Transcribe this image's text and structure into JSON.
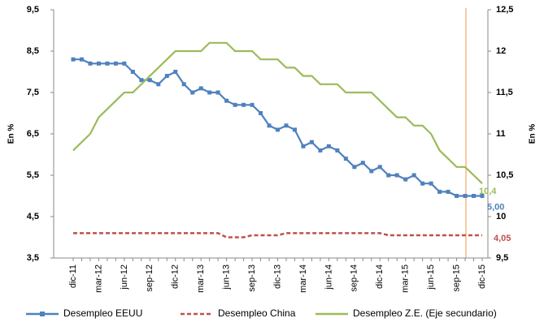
{
  "chart_data": {
    "type": "line",
    "y_label": "En  %",
    "y2_label": "En %",
    "categories": [
      "dic-11",
      null,
      null,
      "mar-12",
      null,
      null,
      "jun-12",
      null,
      null,
      "sep-12",
      null,
      null,
      "dic-12",
      null,
      null,
      "mar-13",
      null,
      null,
      "jun-13",
      null,
      null,
      "sep-13",
      null,
      null,
      "dic-13",
      null,
      null,
      "mar-14",
      null,
      null,
      "jun-14",
      null,
      null,
      "sep-14",
      null,
      null,
      "dic-14",
      null,
      null,
      "mar-15",
      null,
      null,
      "jun-15",
      null,
      null,
      "sep-15",
      null,
      null,
      "dic-15"
    ],
    "series": [
      {
        "name": "Desempleo EEUU",
        "color": "#4f81bd",
        "marker": "square",
        "dash": false,
        "values": [
          8.3,
          8.3,
          8.2,
          8.2,
          8.2,
          8.2,
          8.2,
          8.0,
          7.8,
          7.8,
          7.7,
          7.9,
          8.0,
          7.7,
          7.5,
          7.6,
          7.5,
          7.5,
          7.3,
          7.2,
          7.2,
          7.2,
          7.0,
          6.7,
          6.6,
          6.7,
          6.6,
          6.2,
          6.3,
          6.1,
          6.2,
          6.1,
          5.9,
          5.7,
          5.8,
          5.6,
          5.7,
          5.5,
          5.5,
          5.4,
          5.5,
          5.3,
          5.3,
          5.1,
          5.1,
          5.0,
          5.0,
          5.0,
          5.0
        ],
        "value_labels": [
          null,
          null,
          null,
          null,
          null,
          null,
          null,
          null,
          null,
          null,
          null,
          null,
          null,
          null,
          null,
          null,
          null,
          null,
          null,
          null,
          null,
          null,
          null,
          null,
          null,
          null,
          null,
          null,
          null,
          null,
          null,
          null,
          null,
          null,
          null,
          null,
          null,
          null,
          null,
          null,
          null,
          null,
          null,
          null,
          null,
          null,
          null,
          null,
          "5,00"
        ]
      },
      {
        "name": "Desempleo China",
        "color": "#c0504d",
        "marker": null,
        "dash": true,
        "values": [
          4.1,
          4.1,
          4.1,
          4.1,
          4.1,
          4.1,
          4.1,
          4.1,
          4.1,
          4.1,
          4.1,
          4.1,
          4.1,
          4.1,
          4.1,
          4.1,
          4.1,
          4.1,
          4.0,
          4.0,
          4.0,
          4.05,
          4.05,
          4.05,
          4.05,
          4.1,
          4.1,
          4.1,
          4.1,
          4.1,
          4.1,
          4.1,
          4.1,
          4.1,
          4.1,
          4.1,
          4.1,
          4.05,
          4.05,
          4.05,
          4.05,
          4.05,
          4.05,
          4.05,
          4.05,
          4.05,
          4.05,
          4.05,
          4.05
        ],
        "value_labels": [
          null,
          null,
          null,
          null,
          null,
          null,
          null,
          null,
          null,
          null,
          null,
          null,
          null,
          null,
          null,
          null,
          null,
          null,
          null,
          null,
          null,
          null,
          null,
          null,
          null,
          null,
          null,
          null,
          null,
          null,
          null,
          null,
          null,
          null,
          null,
          null,
          null,
          null,
          null,
          null,
          null,
          null,
          null,
          null,
          null,
          null,
          null,
          null,
          "4,05"
        ]
      },
      {
        "name": "Desempleo Z.E. (Eje secundario)",
        "color": "#9bbb59",
        "marker": null,
        "dash": false,
        "axis": "y2",
        "values": [
          10.8,
          10.9,
          11.0,
          11.2,
          11.3,
          11.4,
          11.5,
          11.5,
          11.6,
          11.7,
          11.8,
          11.9,
          12.0,
          12.0,
          12.0,
          12.0,
          12.1,
          12.1,
          12.1,
          12.0,
          12.0,
          12.0,
          11.9,
          11.9,
          11.9,
          11.8,
          11.8,
          11.7,
          11.7,
          11.6,
          11.6,
          11.6,
          11.5,
          11.5,
          11.5,
          11.5,
          11.4,
          11.3,
          11.2,
          11.2,
          11.1,
          11.1,
          11.0,
          10.8,
          10.7,
          10.6,
          10.6,
          10.5,
          10.4
        ],
        "value_labels": [
          null,
          null,
          null,
          null,
          null,
          null,
          null,
          null,
          null,
          null,
          null,
          null,
          null,
          null,
          null,
          null,
          null,
          null,
          null,
          null,
          null,
          null,
          null,
          null,
          null,
          null,
          null,
          null,
          null,
          null,
          null,
          null,
          null,
          null,
          null,
          null,
          null,
          null,
          null,
          null,
          null,
          null,
          null,
          null,
          null,
          null,
          null,
          null,
          "10,4"
        ]
      }
    ],
    "ylim": [
      3.5,
      9.5
    ],
    "yticks": [
      {
        "value": 3.5,
        "label": "3,5"
      },
      {
        "value": 4.5,
        "label": "4,5"
      },
      {
        "value": 5.5,
        "label": "5,5"
      },
      {
        "value": 6.5,
        "label": "6,5"
      },
      {
        "value": 7.5,
        "label": "7,5"
      },
      {
        "value": 8.5,
        "label": "8,5"
      },
      {
        "value": 9.5,
        "label": "9,5"
      }
    ],
    "y2lim": [
      9.5,
      12.5
    ],
    "y2ticks": [
      {
        "value": 9.5,
        "label": "9,5"
      },
      10,
      {
        "value": 10.5,
        "label": "10,5"
      },
      11,
      {
        "value": 11.5,
        "label": "11,5"
      },
      12,
      {
        "value": 12.5,
        "label": "12,5"
      }
    ],
    "grid": false,
    "legend": "bottom"
  }
}
